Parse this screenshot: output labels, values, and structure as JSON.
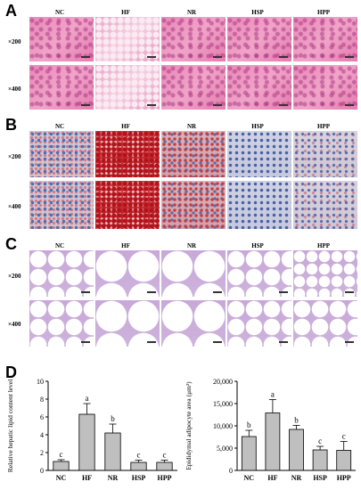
{
  "panels": {
    "A": "A",
    "B": "B",
    "C": "C",
    "D": "D"
  },
  "groups": [
    "NC",
    "HF",
    "NR",
    "HSP",
    "HPP"
  ],
  "magnifications": [
    "×200",
    "×400"
  ],
  "chart_data": [
    {
      "type": "bar",
      "categories": [
        "NC",
        "HF",
        "NR",
        "HSP",
        "HPP"
      ],
      "values": [
        1.0,
        6.3,
        4.2,
        0.9,
        0.9
      ],
      "errors": [
        0.2,
        1.2,
        1.0,
        0.25,
        0.25
      ],
      "letters": [
        "c",
        "a",
        "b",
        "c",
        "c"
      ],
      "ylabel": "Relative hepatic lipid content level",
      "ylim": [
        0,
        10
      ],
      "yticks": [
        "0",
        "2",
        "4",
        "6",
        "8",
        "10"
      ]
    },
    {
      "type": "bar",
      "categories": [
        "NC",
        "HF",
        "NR",
        "HSP",
        "HPP"
      ],
      "values": [
        7600,
        12900,
        9200,
        4600,
        4500
      ],
      "errors": [
        1400,
        3000,
        900,
        800,
        2000
      ],
      "letters": [
        "b",
        "a",
        "b",
        "c",
        "c"
      ],
      "ylabel": "Epididymal adipocyte area (μm²)",
      "ylim": [
        0,
        20000
      ],
      "yticks": [
        "0",
        "5,000",
        "10,000",
        "15,000",
        "20,000"
      ]
    }
  ]
}
